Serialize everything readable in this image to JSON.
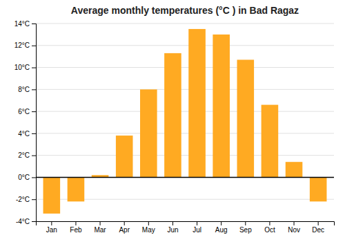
{
  "chart_data": {
    "type": "bar",
    "title": "Average monthly temperatures (°C ) in Bad Ragaz",
    "categories": [
      "Jan",
      "Feb",
      "Mar",
      "Apr",
      "May",
      "Jun",
      "Jul",
      "Aug",
      "Sep",
      "Oct",
      "Nov",
      "Dec"
    ],
    "values": [
      -3.3,
      -2.2,
      0.2,
      3.8,
      8.0,
      11.3,
      13.5,
      13.0,
      10.7,
      6.6,
      1.4,
      -2.2
    ],
    "color": "#FFAA22",
    "ylim": [
      -4,
      14
    ],
    "yticks": [
      {
        "value": -4,
        "label": "-4°C"
      },
      {
        "value": -2,
        "label": "-2°C"
      },
      {
        "value": 0,
        "label": "0°C"
      },
      {
        "value": 2,
        "label": "2°C"
      },
      {
        "value": 4,
        "label": "4°C"
      },
      {
        "value": 6,
        "label": "6°C"
      },
      {
        "value": 8,
        "label": "8°C"
      },
      {
        "value": 10,
        "label": "10°C"
      },
      {
        "value": 12,
        "label": "12°C"
      },
      {
        "value": 14,
        "label": "14°C"
      }
    ],
    "grid": true
  }
}
